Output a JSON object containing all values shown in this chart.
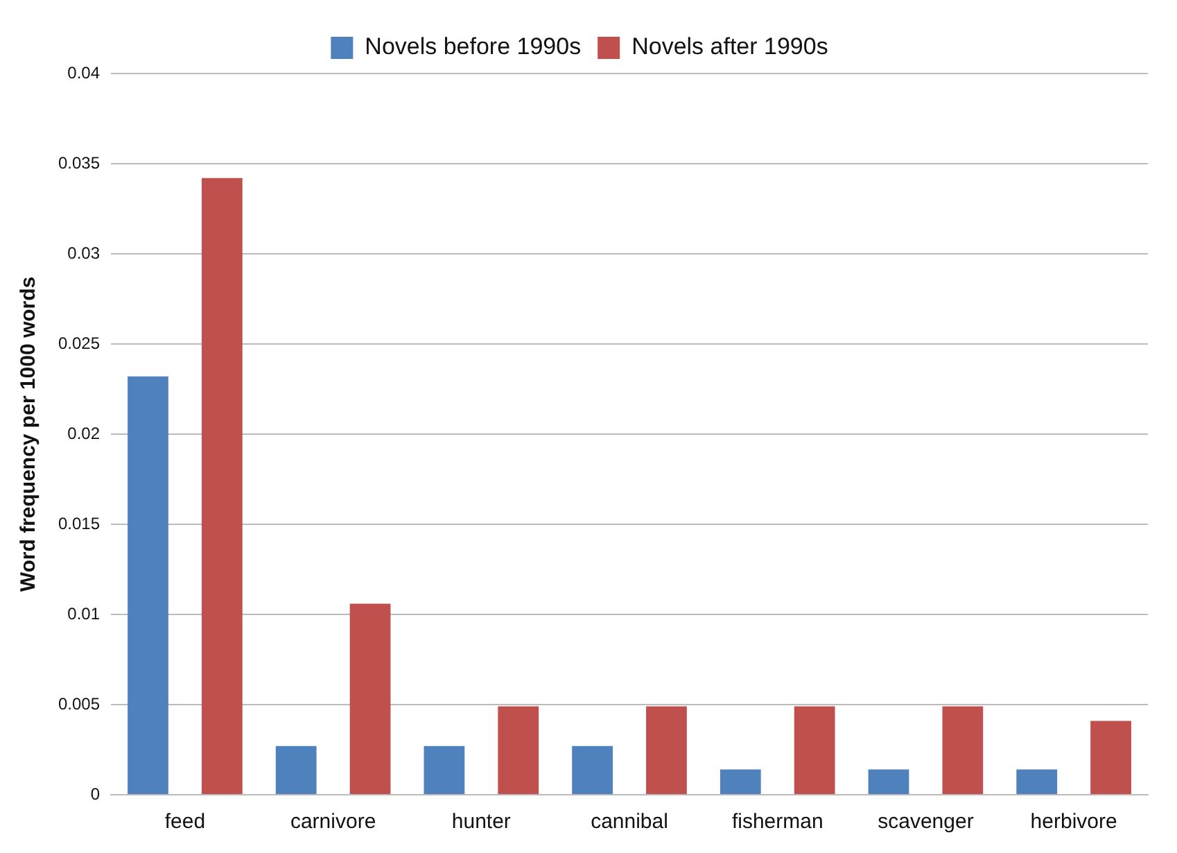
{
  "chart_data": {
    "type": "bar",
    "ylabel": "Word frequency per 1000 words",
    "categories": [
      "feed",
      "carnivore",
      "hunter",
      "cannibal",
      "fisherman",
      "scavenger",
      "herbivore"
    ],
    "series": [
      {
        "name": "Novels before 1990s",
        "color": "#4f81bd",
        "values": [
          0.0232,
          0.0027,
          0.0027,
          0.0027,
          0.0014,
          0.0014,
          0.0014
        ]
      },
      {
        "name": "Novels after 1990s",
        "color": "#c0504d",
        "values": [
          0.0342,
          0.0106,
          0.0049,
          0.0049,
          0.0049,
          0.0049,
          0.0041
        ]
      }
    ],
    "ylim": [
      0,
      0.04
    ],
    "yticks": [
      0,
      0.005,
      0.01,
      0.015,
      0.02,
      0.025,
      0.03,
      0.035,
      0.04
    ],
    "grid": "y",
    "legend": "top"
  }
}
